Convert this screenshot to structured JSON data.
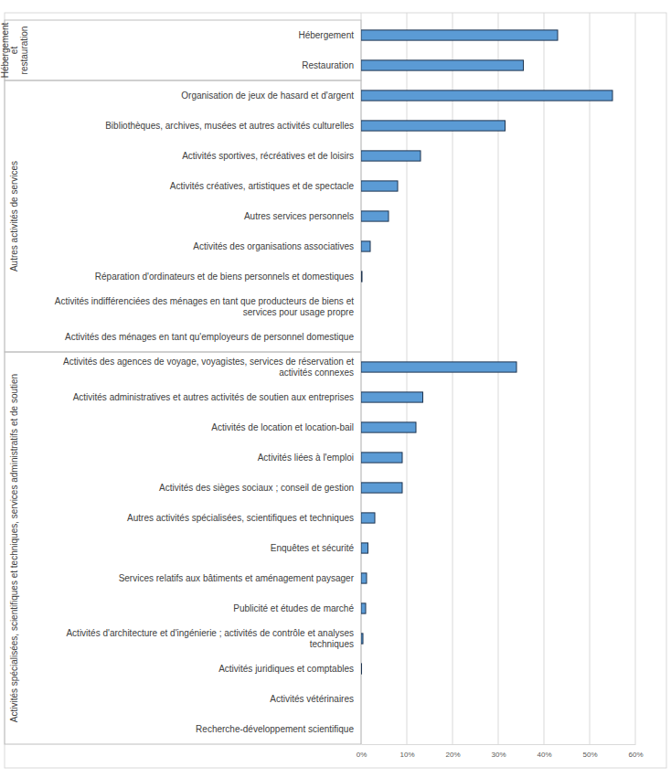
{
  "chart_data": {
    "type": "bar",
    "orientation": "horizontal",
    "grid": true,
    "color": "#5b9bd5",
    "xlim": [
      0,
      60
    ],
    "xticks": [
      {
        "value": 0,
        "label": "0%"
      },
      {
        "value": 10,
        "label": "10%"
      },
      {
        "value": 20,
        "label": "20%"
      },
      {
        "value": 30,
        "label": "30%"
      },
      {
        "value": 40,
        "label": "40%"
      },
      {
        "value": 50,
        "label": "50%"
      },
      {
        "value": 60,
        "label": "60%"
      }
    ],
    "groups": [
      {
        "label": "Hébergement et restauration",
        "categories": [
          "Hébergement",
          "Restauration"
        ],
        "values": [
          43,
          35.5
        ]
      },
      {
        "label": "Autres activités de services",
        "categories": [
          "Organisation de jeux de hasard et d'argent",
          "Bibliothèques, archives, musées et autres activités culturelles",
          "Activités sportives, récréatives et de loisirs",
          "Activités créatives, artistiques et de spectacle",
          "Autres services personnels",
          "Activités des organisations associatives",
          "Réparation d'ordinateurs et de biens personnels et domestiques",
          "Activités indifférenciées des ménages en tant que producteurs de biens et services pour usage propre",
          "Activités des ménages en tant qu'employeurs de personnel domestique"
        ],
        "values": [
          55,
          31.5,
          13,
          8,
          6,
          2,
          0.2,
          0,
          0
        ]
      },
      {
        "label": "Activités spécialisées, scientifiques et techniques, services administratifs et de soutien",
        "categories": [
          "Activités des agences de voyage, voyagistes, services de réservation et activités connexes",
          "Activités administratives et autres activités de soutien aux entreprises",
          "Activités de location et location-bail",
          "Activités liées à l'emploi",
          "Activités des sièges sociaux ; conseil de gestion",
          "Autres activités spécialisées, scientifiques et techniques",
          "Enquêtes et sécurité",
          "Services relatifs aux bâtiments et aménagement paysager",
          "Publicité et études de marché",
          "Activités d'architecture et d'ingénierie ; activités de contrôle et analyses techniques",
          "Activités juridiques et comptables",
          "Activités vétérinaires",
          "Recherche-développement scientifique"
        ],
        "values": [
          34,
          13.5,
          12,
          9,
          9,
          3,
          1.5,
          1.2,
          1,
          0.4,
          0.1,
          0,
          0
        ]
      }
    ]
  }
}
